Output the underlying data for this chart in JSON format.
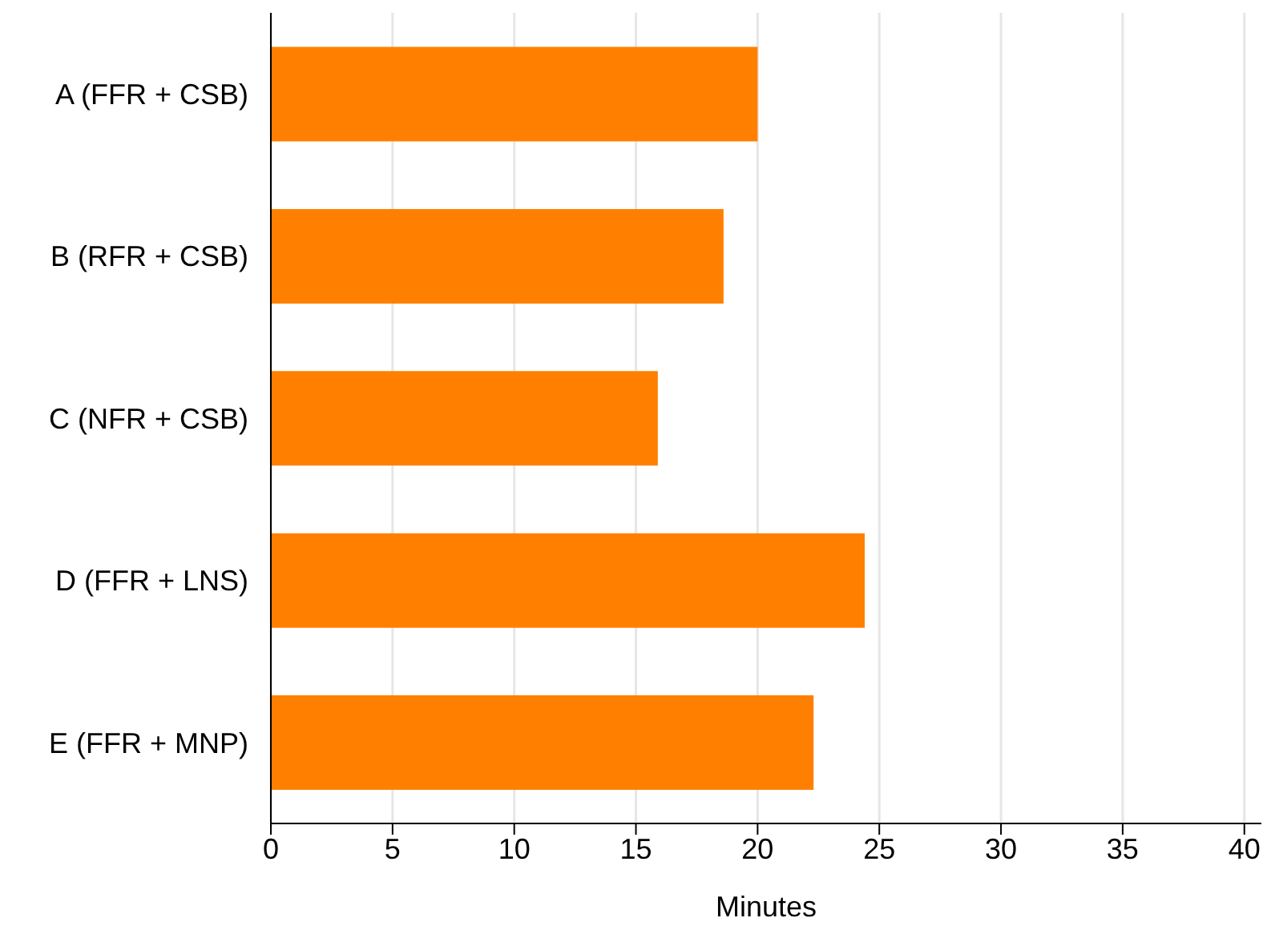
{
  "chart_data": {
    "type": "bar",
    "orientation": "horizontal",
    "xlabel": "Minutes",
    "categories": [
      "A (FFR + CSB)",
      "B (RFR + CSB)",
      "C (NFR + CSB)",
      "D (FFR + LNS)",
      "E (FFR + MNP)"
    ],
    "values": [
      20.0,
      18.6,
      15.9,
      24.4,
      22.3
    ],
    "color": "#ff8000",
    "xlim": [
      0,
      40.7
    ],
    "xticks": [
      0,
      5,
      10,
      15,
      20,
      25,
      30,
      35,
      40
    ],
    "grid": "x"
  }
}
